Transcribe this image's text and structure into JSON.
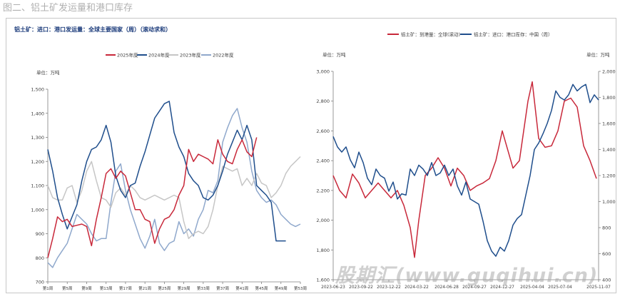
{
  "page": {
    "title": "图二、铝土矿发运量和港口库存",
    "watermark": "股期汇(www.guqihui.cn)"
  },
  "colors": {
    "y2025": "#c8283a",
    "y2024": "#1f4e8c",
    "y2023": "#c6c6c6",
    "y2022": "#8fa8cc",
    "axis": "#7f7f7f",
    "grid": "#e6e6e6",
    "text": "#404040"
  },
  "chart_data": [
    {
      "type": "line",
      "title": "铝土矿：进口：港口发运量：全球主要国家（周）（滚动求和）",
      "unit_label": "单位：万吨",
      "ylim": [
        700,
        1500
      ],
      "y_ticks": [
        "700",
        "800",
        "900",
        "1,000",
        "1,100",
        "1,200",
        "1,300",
        "1,400",
        "1,500"
      ],
      "y_tick_values": [
        700,
        800,
        900,
        1000,
        1100,
        1200,
        1300,
        1400,
        1500
      ],
      "x_count": 53,
      "x_tick_labels": [
        "第1周",
        "第5周",
        "第9周",
        "第13周",
        "第17周",
        "第21周",
        "第25周",
        "第29周",
        "第33周",
        "第37周",
        "第41周",
        "第45周",
        "第49周",
        "第53周"
      ],
      "x_tick_weeks": [
        1,
        5,
        9,
        13,
        17,
        21,
        25,
        29,
        33,
        37,
        41,
        45,
        49,
        53
      ],
      "legend_position": "top",
      "series": [
        {
          "name": "2025年度",
          "color_key": "y2025",
          "x": [
            1,
            2,
            3,
            4,
            5,
            6,
            7,
            8,
            9,
            10,
            11,
            12,
            13,
            14,
            15,
            16,
            17,
            18,
            19,
            20,
            21,
            22,
            23,
            24,
            25,
            26,
            27,
            28,
            29,
            30,
            31,
            32,
            33,
            34,
            35,
            36,
            37,
            38,
            39,
            40,
            41,
            42,
            43,
            44
          ],
          "values": [
            800,
            880,
            970,
            950,
            960,
            930,
            935,
            940,
            930,
            850,
            960,
            1050,
            1150,
            1170,
            1130,
            1160,
            1140,
            1070,
            1000,
            1000,
            960,
            950,
            860,
            920,
            960,
            970,
            1000,
            1060,
            1100,
            1250,
            1200,
            1230,
            1220,
            1210,
            1190,
            1290,
            1230,
            1200,
            1190,
            1250,
            1290,
            1240,
            1220,
            1300
          ]
        },
        {
          "name": "2024年度",
          "color_key": "y2024",
          "x": [
            1,
            2,
            3,
            4,
            5,
            6,
            7,
            8,
            9,
            10,
            11,
            12,
            13,
            14,
            15,
            16,
            17,
            18,
            19,
            20,
            21,
            22,
            23,
            24,
            25,
            26,
            27,
            28,
            29,
            30,
            31,
            32,
            33,
            34,
            35,
            36,
            37,
            38,
            39,
            40,
            41,
            42,
            43,
            44,
            45,
            46,
            47,
            48,
            49,
            50
          ],
          "values": [
            1250,
            1160,
            1050,
            980,
            920,
            970,
            1020,
            1120,
            1200,
            1250,
            1260,
            1290,
            1350,
            1280,
            1140,
            1080,
            1050,
            1100,
            1110,
            1180,
            1240,
            1310,
            1380,
            1410,
            1440,
            1450,
            1320,
            1260,
            1220,
            1150,
            1120,
            1100,
            1050,
            1040,
            1060,
            1100,
            1160,
            1230,
            1280,
            1330,
            1290,
            1350,
            1290,
            1100,
            1080,
            1060,
            1030,
            870,
            870,
            870
          ]
        },
        {
          "name": "2023年度",
          "color_key": "y2023",
          "x": [
            1,
            2,
            3,
            4,
            5,
            6,
            7,
            8,
            9,
            10,
            11,
            12,
            13,
            14,
            15,
            16,
            17,
            18,
            19,
            20,
            21,
            22,
            23,
            24,
            25,
            26,
            27,
            28,
            29,
            30,
            31,
            32,
            33,
            34,
            35,
            36,
            37,
            38,
            39,
            40,
            41,
            42,
            43,
            44,
            45,
            46,
            47,
            48,
            49,
            50,
            51,
            52,
            53
          ],
          "values": [
            1100,
            1050,
            1040,
            1040,
            1090,
            1100,
            1030,
            1080,
            1160,
            1200,
            1120,
            1050,
            1040,
            1010,
            1070,
            1090,
            1060,
            1100,
            1080,
            1050,
            1040,
            1050,
            1060,
            1050,
            1040,
            1050,
            1060,
            1050,
            950,
            880,
            900,
            910,
            900,
            930,
            1000,
            1100,
            1180,
            1170,
            1160,
            1170,
            1100,
            1130,
            1100,
            1150,
            1110,
            1100,
            1050,
            1070,
            1100,
            1150,
            1180,
            1200,
            1220
          ]
        },
        {
          "name": "2022年度",
          "color_key": "y2022",
          "x": [
            1,
            2,
            3,
            4,
            5,
            6,
            7,
            8,
            9,
            10,
            11,
            12,
            13,
            14,
            15,
            16,
            17,
            18,
            19,
            20,
            21,
            22,
            23,
            24,
            25,
            26,
            27,
            28,
            29,
            30,
            31,
            32,
            33,
            34,
            35,
            36,
            37,
            38,
            39,
            40,
            41,
            42,
            43,
            44,
            45,
            46,
            47,
            48,
            49,
            50,
            51,
            52,
            53
          ],
          "values": [
            780,
            760,
            800,
            830,
            860,
            920,
            980,
            960,
            940,
            900,
            870,
            880,
            880,
            1030,
            1160,
            1190,
            1080,
            1000,
            940,
            880,
            840,
            890,
            960,
            860,
            830,
            860,
            870,
            950,
            900,
            920,
            890,
            960,
            1000,
            1080,
            1070,
            1120,
            1280,
            1340,
            1390,
            1420,
            1340,
            1280,
            1160,
            1080,
            1050,
            1030,
            1040,
            1020,
            980,
            960,
            940,
            930,
            940
          ]
        }
      ]
    },
    {
      "type": "line",
      "title": "",
      "unit_label_left": "单位：万吨",
      "unit_label_right": "单位：万吨",
      "ylim_left": [
        1600,
        3000
      ],
      "ylim_right": [
        400,
        2000
      ],
      "y_ticks_left": [
        "1,600",
        "1,800",
        "2,000",
        "2,200",
        "2,400",
        "2,600",
        "2,800",
        "3,000"
      ],
      "y_tick_values_left": [
        1600,
        1800,
        2000,
        2200,
        2400,
        2600,
        2800,
        3000
      ],
      "y_ticks_right": [
        "400",
        "600",
        "800",
        "1,000",
        "1,200",
        "1,400",
        "1,600",
        "1,800",
        "2,000"
      ],
      "y_tick_values_right": [
        400,
        600,
        800,
        1000,
        1200,
        1400,
        1600,
        1800,
        2000
      ],
      "x_tick_labels": [
        "2023-06-23",
        "2023-09-22",
        "2023-12-22",
        "2024-03-22",
        "2024-06-28",
        "2024-09-27",
        "2024-12-27",
        "2025-04-04",
        "2025-07-04",
        "2025-11-07"
      ],
      "x_tick_dates": [
        "2023-06-23",
        "2023-09-22",
        "2023-12-22",
        "2024-03-22",
        "2024-06-28",
        "2024-09-27",
        "2024-12-27",
        "2025-04-04",
        "2025-07-04",
        "2025-11-07"
      ],
      "legend_position": "top",
      "series": [
        {
          "name": "铝土矿：到港量：全球(滚动)",
          "color_key": "y2025",
          "axis": "left",
          "x": [
            "2023-06-23",
            "2023-07-14",
            "2023-08-04",
            "2023-08-25",
            "2023-09-15",
            "2023-10-06",
            "2023-10-27",
            "2023-11-17",
            "2023-12-08",
            "2023-12-29",
            "2024-01-19",
            "2024-02-09",
            "2024-03-01",
            "2024-03-15",
            "2024-03-29",
            "2024-04-19",
            "2024-05-10",
            "2024-05-31",
            "2024-06-21",
            "2024-07-12",
            "2024-08-02",
            "2024-08-23",
            "2024-09-13",
            "2024-10-04",
            "2024-10-25",
            "2024-11-15",
            "2024-12-06",
            "2024-12-27",
            "2025-01-10",
            "2025-01-31",
            "2025-02-21",
            "2025-03-07",
            "2025-03-21",
            "2025-04-04",
            "2025-04-25",
            "2025-05-16",
            "2025-06-06",
            "2025-06-27",
            "2025-07-18",
            "2025-08-08",
            "2025-08-29",
            "2025-09-19",
            "2025-10-10",
            "2025-10-31"
          ],
          "values": [
            2300,
            2200,
            2150,
            2310,
            2250,
            2150,
            2200,
            2250,
            2200,
            2150,
            2200,
            2100,
            1950,
            1750,
            2000,
            2300,
            2350,
            2420,
            2350,
            2230,
            2350,
            2300,
            2200,
            2230,
            2250,
            2280,
            2400,
            2600,
            2500,
            2350,
            2400,
            2600,
            2800,
            2930,
            2550,
            2490,
            2500,
            2600,
            2800,
            2820,
            2760,
            2500,
            2400,
            2280
          ]
        },
        {
          "name": "铝土矿：进口：港口库存：中国（周）",
          "color_key": "y2024",
          "axis": "right",
          "x": [
            "2023-06-23",
            "2023-07-07",
            "2023-07-21",
            "2023-08-04",
            "2023-08-18",
            "2023-09-01",
            "2023-09-15",
            "2023-09-29",
            "2023-10-13",
            "2023-10-27",
            "2023-11-10",
            "2023-11-24",
            "2023-12-08",
            "2023-12-22",
            "2024-01-05",
            "2024-01-19",
            "2024-02-02",
            "2024-02-16",
            "2024-03-01",
            "2024-03-15",
            "2024-03-29",
            "2024-04-12",
            "2024-04-26",
            "2024-05-10",
            "2024-05-24",
            "2024-06-07",
            "2024-06-21",
            "2024-07-05",
            "2024-07-19",
            "2024-08-02",
            "2024-08-16",
            "2024-08-30",
            "2024-09-13",
            "2024-09-27",
            "2024-10-11",
            "2024-10-25",
            "2024-11-08",
            "2024-11-22",
            "2024-12-06",
            "2024-12-20",
            "2025-01-03",
            "2025-01-17",
            "2025-01-31",
            "2025-02-14",
            "2025-02-28",
            "2025-03-14",
            "2025-03-28",
            "2025-04-11",
            "2025-04-25",
            "2025-05-09",
            "2025-05-23",
            "2025-06-06",
            "2025-06-20",
            "2025-07-04",
            "2025-07-18",
            "2025-08-01",
            "2025-08-15",
            "2025-08-29",
            "2025-09-12",
            "2025-09-26",
            "2025-10-10",
            "2025-10-24",
            "2025-11-07"
          ],
          "values": [
            1500,
            1420,
            1380,
            1420,
            1320,
            1260,
            1380,
            1300,
            1180,
            1130,
            1250,
            1200,
            1180,
            1080,
            1150,
            1020,
            1060,
            1050,
            1250,
            1200,
            1280,
            1250,
            1200,
            1300,
            1200,
            1220,
            1280,
            1200,
            1250,
            1120,
            1050,
            1150,
            1020,
            1000,
            980,
            850,
            700,
            620,
            580,
            650,
            620,
            700,
            820,
            870,
            900,
            1050,
            1200,
            1400,
            1450,
            1520,
            1600,
            1700,
            1850,
            1800,
            1780,
            1820,
            1900,
            1850,
            1880,
            1900,
            1760,
            1820,
            1780
          ]
        }
      ]
    }
  ]
}
